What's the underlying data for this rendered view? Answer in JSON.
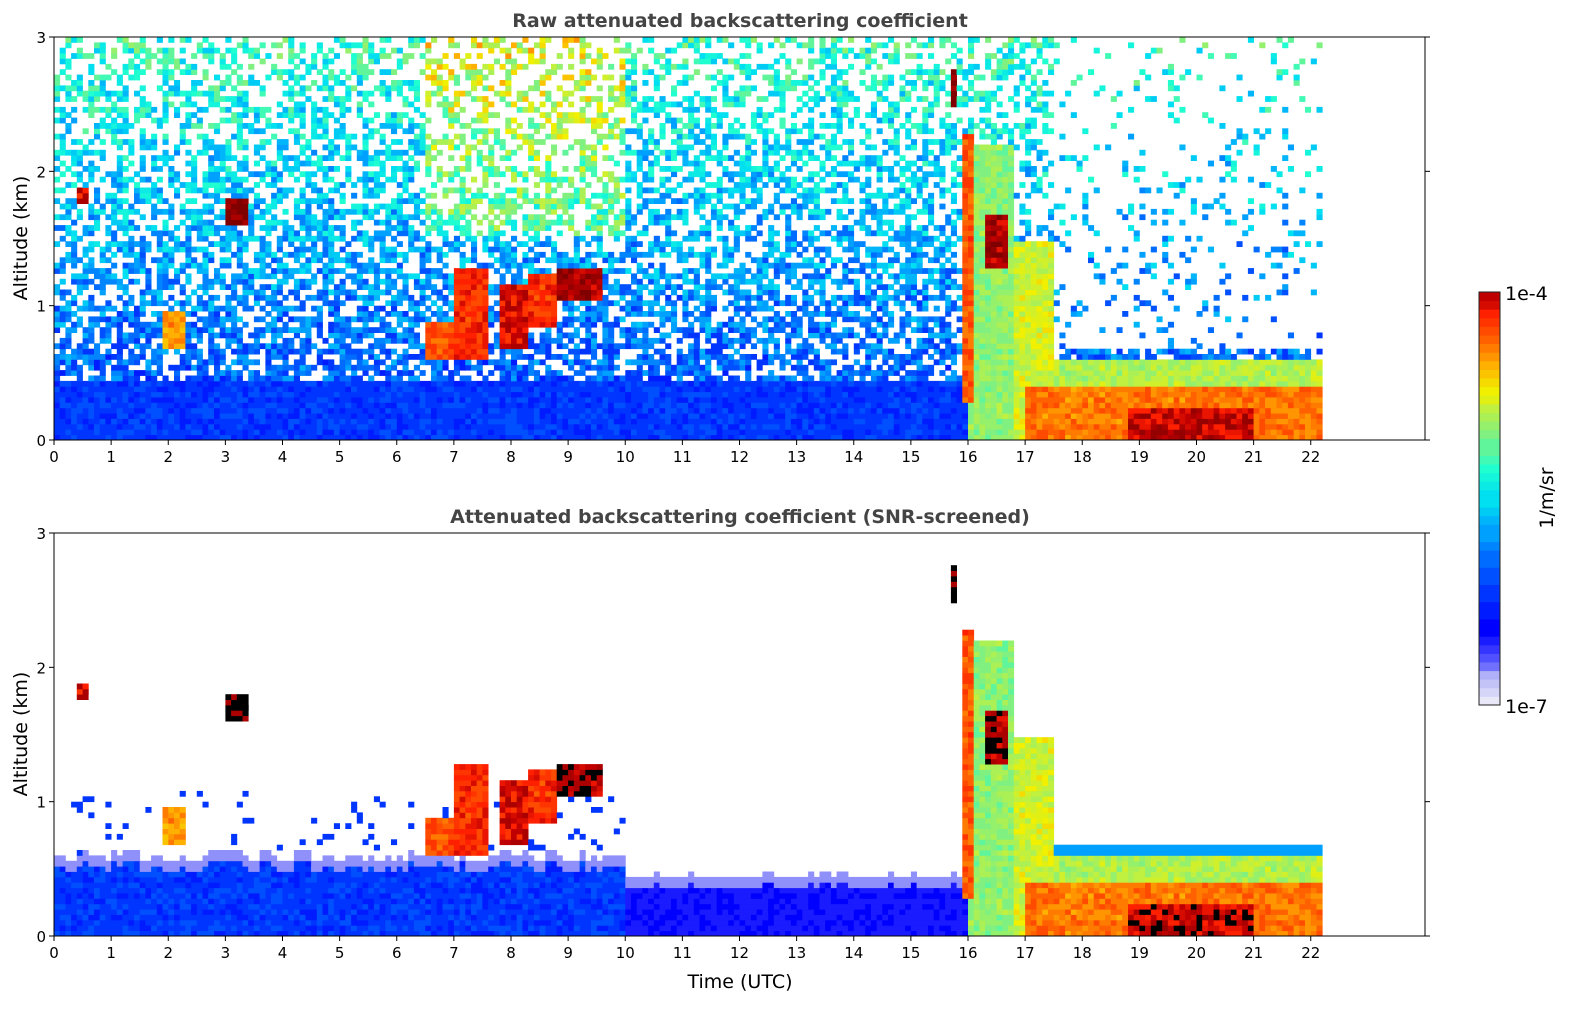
{
  "chart_data": [
    {
      "type": "heatmap",
      "id": "raw",
      "title": "Raw attenuated backscattering coefficient",
      "xlabel": "",
      "ylabel": "Altitude (km)",
      "xlim": [
        0,
        24
      ],
      "ylim": [
        0,
        3
      ],
      "xticks": [
        0,
        1,
        2,
        3,
        4,
        5,
        6,
        7,
        8,
        9,
        10,
        11,
        12,
        13,
        14,
        15,
        16,
        17,
        18,
        19,
        20,
        21,
        22
      ],
      "yticks": [
        0,
        1,
        2,
        3
      ],
      "data_end_time": 22.2,
      "noise": true,
      "screened": false
    },
    {
      "type": "heatmap",
      "id": "screened",
      "title": "Attenuated backscattering coefficient (SNR-screened)",
      "xlabel": "Time (UTC)",
      "ylabel": "Altitude (km)",
      "xlim": [
        0,
        24
      ],
      "ylim": [
        0,
        3
      ],
      "xticks": [
        0,
        1,
        2,
        3,
        4,
        5,
        6,
        7,
        8,
        9,
        10,
        11,
        12,
        13,
        14,
        15,
        16,
        17,
        18,
        19,
        20,
        21,
        22
      ],
      "yticks": [
        0,
        1,
        2,
        3
      ],
      "data_end_time": 22.2,
      "noise": false,
      "screened": true
    }
  ],
  "features_log10": [
    {
      "t": [
        0.45,
        0.6
      ],
      "z": [
        1.75,
        1.9
      ],
      "v": -4.1
    },
    {
      "t": [
        1.9,
        2.3
      ],
      "z": [
        0.7,
        0.95
      ],
      "v": -4.5
    },
    {
      "t": [
        3.05,
        3.45
      ],
      "z": [
        1.6,
        1.82
      ],
      "v": -3.9
    },
    {
      "t": [
        6.5,
        7.0
      ],
      "z": [
        0.6,
        0.9
      ],
      "v": -4.3
    },
    {
      "t": [
        7.0,
        7.6
      ],
      "z": [
        0.6,
        1.3
      ],
      "v": -4.2
    },
    {
      "t": [
        7.8,
        8.3
      ],
      "z": [
        0.7,
        1.15
      ],
      "v": -4.1
    },
    {
      "t": [
        8.3,
        8.8
      ],
      "z": [
        0.85,
        1.25
      ],
      "v": -4.2
    },
    {
      "t": [
        8.8,
        9.6
      ],
      "z": [
        1.05,
        1.3
      ],
      "v": -4.0
    },
    {
      "t": [
        15.7,
        15.85
      ],
      "z": [
        2.5,
        2.75
      ],
      "v": -3.9
    },
    {
      "t": [
        16.0,
        16.8
      ],
      "z": [
        0.0,
        2.2
      ],
      "v": -5.0
    },
    {
      "t": [
        15.9,
        16.1
      ],
      "z": [
        0.3,
        2.3
      ],
      "v": -4.3
    },
    {
      "t": [
        16.3,
        16.7
      ],
      "z": [
        1.3,
        1.7
      ],
      "v": -4.0
    },
    {
      "t": [
        16.8,
        17.5
      ],
      "z": [
        0.0,
        1.5
      ],
      "v": -4.8
    },
    {
      "t": [
        17.0,
        22.2
      ],
      "z": [
        0.0,
        0.6
      ],
      "v": -4.9
    },
    {
      "t": [
        17.0,
        22.2
      ],
      "z": [
        0.0,
        0.4
      ],
      "v": -4.4
    },
    {
      "t": [
        18.8,
        21.0
      ],
      "z": [
        0.0,
        0.25
      ],
      "v": -4.05
    }
  ],
  "colorbar": {
    "label": "1/m/sr",
    "max_label": "1e-4",
    "min_label": "1e-7",
    "log10_range": [
      -7,
      -4
    ],
    "stops": [
      [
        -7.0,
        "#e8e8f8"
      ],
      [
        -6.8,
        "#b0b0f8"
      ],
      [
        -6.65,
        "#5050ff"
      ],
      [
        -6.45,
        "#0000ff"
      ],
      [
        -6.05,
        "#0050ff"
      ],
      [
        -5.75,
        "#00a0ff"
      ],
      [
        -5.5,
        "#00e0f0"
      ],
      [
        -5.3,
        "#20ffd0"
      ],
      [
        -5.05,
        "#80f080"
      ],
      [
        -4.85,
        "#c0f040"
      ],
      [
        -4.72,
        "#f0f000"
      ],
      [
        -4.55,
        "#ffb000"
      ],
      [
        -4.35,
        "#ff6000"
      ],
      [
        -4.15,
        "#ff2000"
      ],
      [
        -4.05,
        "#c00000"
      ],
      [
        -3.9,
        "#800000"
      ]
    ],
    "screened_saturation_color": "#000000"
  }
}
